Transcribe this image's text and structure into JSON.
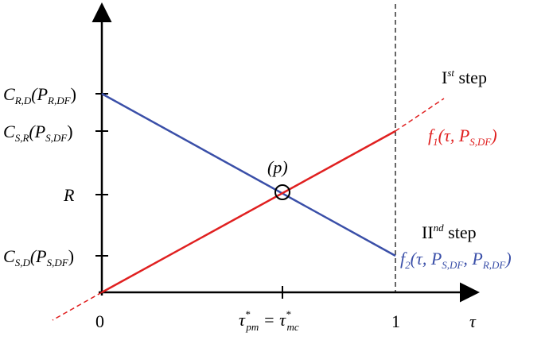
{
  "y_labels": [
    {
      "main": "C",
      "sub": "R,D",
      "arg": "(P",
      "arg_sub": "R,DF",
      "close": ")"
    },
    {
      "main": "C",
      "sub": "S,R",
      "arg": "(P",
      "arg_sub": "S,DF",
      "close": ")"
    },
    {
      "main": "R"
    },
    {
      "main": "C",
      "sub": "S,D",
      "arg": "(P",
      "arg_sub": "S,DF",
      "close": ")"
    }
  ],
  "x_labels": {
    "origin": "0",
    "equilibrium": {
      "main": "τ",
      "sup": "*",
      "sub": "pm",
      "eq": " = τ",
      "sup2": "*",
      "sub2": "mc"
    },
    "one": "1",
    "axis": "τ"
  },
  "point": "(p)",
  "steps": [
    {
      "main": "I",
      "sup": "st",
      "rest": " step"
    },
    {
      "main": "II",
      "sup": "nd",
      "rest": " step"
    }
  ],
  "functions": [
    {
      "main": "f",
      "sub": "1",
      "arg": "(τ, P",
      "arg_sub": "S,DF",
      "close": ")"
    },
    {
      "main": "f",
      "sub": "2",
      "arg": "(τ, P",
      "arg_sub": "S,DF",
      "mid": ", P",
      "mid_sub": "R,DF",
      "close": ")"
    }
  ]
}
